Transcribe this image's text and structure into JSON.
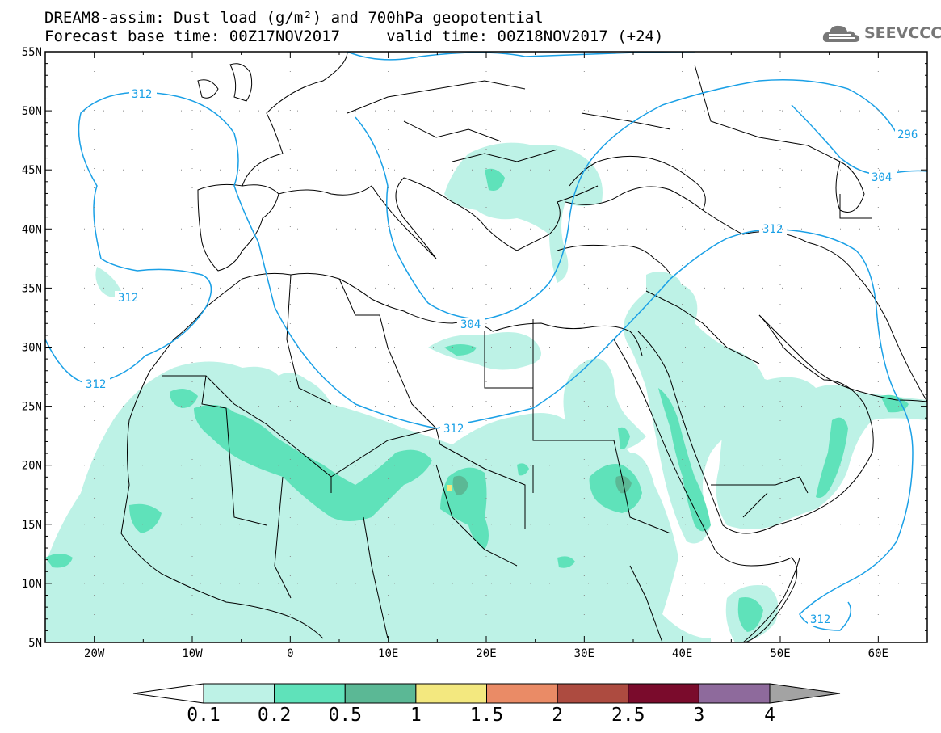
{
  "header": {
    "title_line1": "DREAM8-assim: Dust load (g/m²) and 700hPa geopotential",
    "title_line2": "Forecast base time: 00Z17NOV2017     valid time: 00Z18NOV2017 (+24)"
  },
  "logo": {
    "text": "SEEVCCC",
    "icon": "cloud-logo-icon",
    "color": "#777777"
  },
  "map": {
    "lon_range": [
      -25,
      65
    ],
    "lat_range": [
      5,
      55
    ],
    "lon_ticks": [
      "20W",
      "10W",
      "0",
      "10E",
      "20E",
      "30E",
      "40E",
      "50E",
      "60E"
    ],
    "lat_ticks": [
      "55N",
      "50N",
      "45N",
      "40N",
      "35N",
      "30N",
      "25N",
      "20N",
      "15N",
      "10N",
      "5N"
    ],
    "contour_color": "#1aa0e6",
    "contour_labels": [
      "312",
      "312",
      "312",
      "304",
      "312",
      "312",
      "296",
      "304",
      "312"
    ]
  },
  "colorbar": {
    "levels": [
      "0.1",
      "0.2",
      "0.5",
      "1",
      "1.5",
      "2",
      "2.5",
      "3",
      "4"
    ],
    "colors": [
      "#bdf2e6",
      "#5fe2ba",
      "#5bb895",
      "#f3e87f",
      "#ea8b66",
      "#ad4b40",
      "#7a0b2c",
      "#8e6a9c",
      "#a3a3a3"
    ]
  }
}
